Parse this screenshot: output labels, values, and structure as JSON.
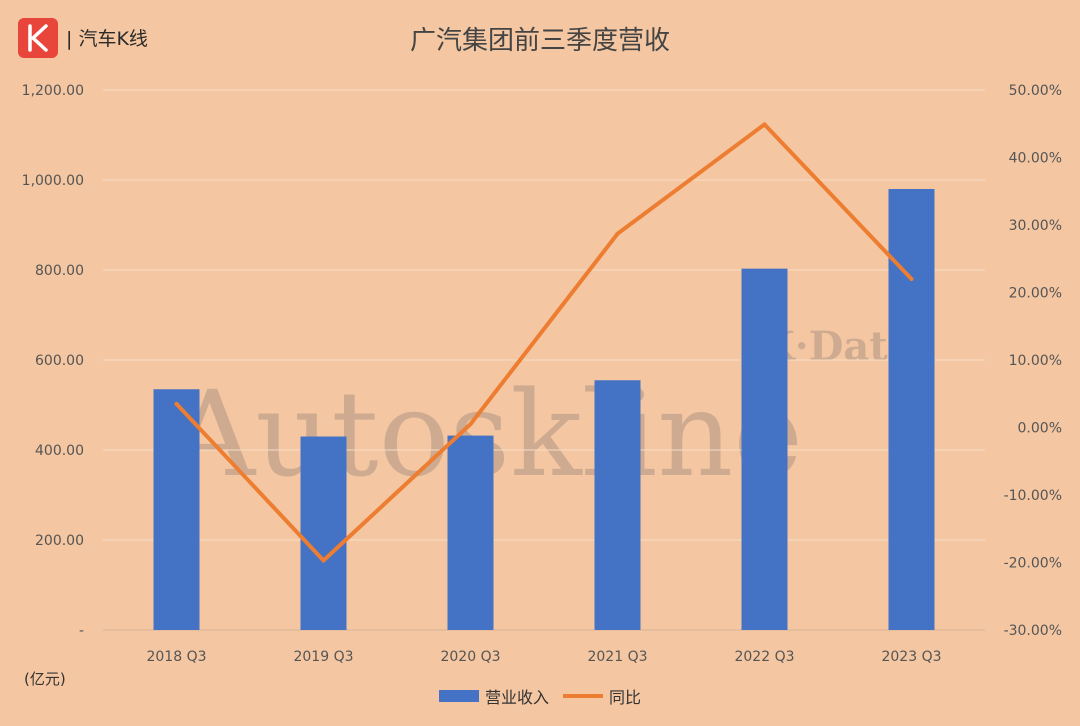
{
  "brand": {
    "logo_letter": "K",
    "name": "汽车K线"
  },
  "watermark": {
    "main": "Autoskline",
    "sub": "K·Data"
  },
  "unit_label": "(亿元)",
  "colors": {
    "bar": "#4472c4",
    "line": "#ed7d31",
    "background": "#f4c7a2",
    "logo": "#e8463b"
  },
  "chart_data": {
    "type": "bar",
    "title": "广汽集团前三季度营收",
    "categories": [
      "2018 Q3",
      "2019 Q3",
      "2020 Q3",
      "2021 Q3",
      "2022 Q3",
      "2023 Q3"
    ],
    "series": [
      {
        "name": "营业收入",
        "type": "bar",
        "axis": "left",
        "values": [
          535,
          430,
          432,
          555,
          803,
          980
        ]
      },
      {
        "name": "同比",
        "type": "line",
        "axis": "right",
        "values": [
          3.5,
          -19.7,
          0.5,
          28.7,
          44.9,
          22.0
        ]
      }
    ],
    "y_left": {
      "min": 0,
      "max": 1200,
      "step": 200,
      "tick_labels": [
        "-",
        "200.00",
        "400.00",
        "600.00",
        "800.00",
        "1,000.00",
        "1,200.00"
      ]
    },
    "y_right": {
      "min": -30,
      "max": 50,
      "step": 10,
      "tick_labels": [
        "-30.00%",
        "-20.00%",
        "-10.00%",
        "0.00%",
        "10.00%",
        "20.00%",
        "30.00%",
        "40.00%",
        "50.00%"
      ]
    },
    "grid": true,
    "legend_position": "bottom"
  }
}
